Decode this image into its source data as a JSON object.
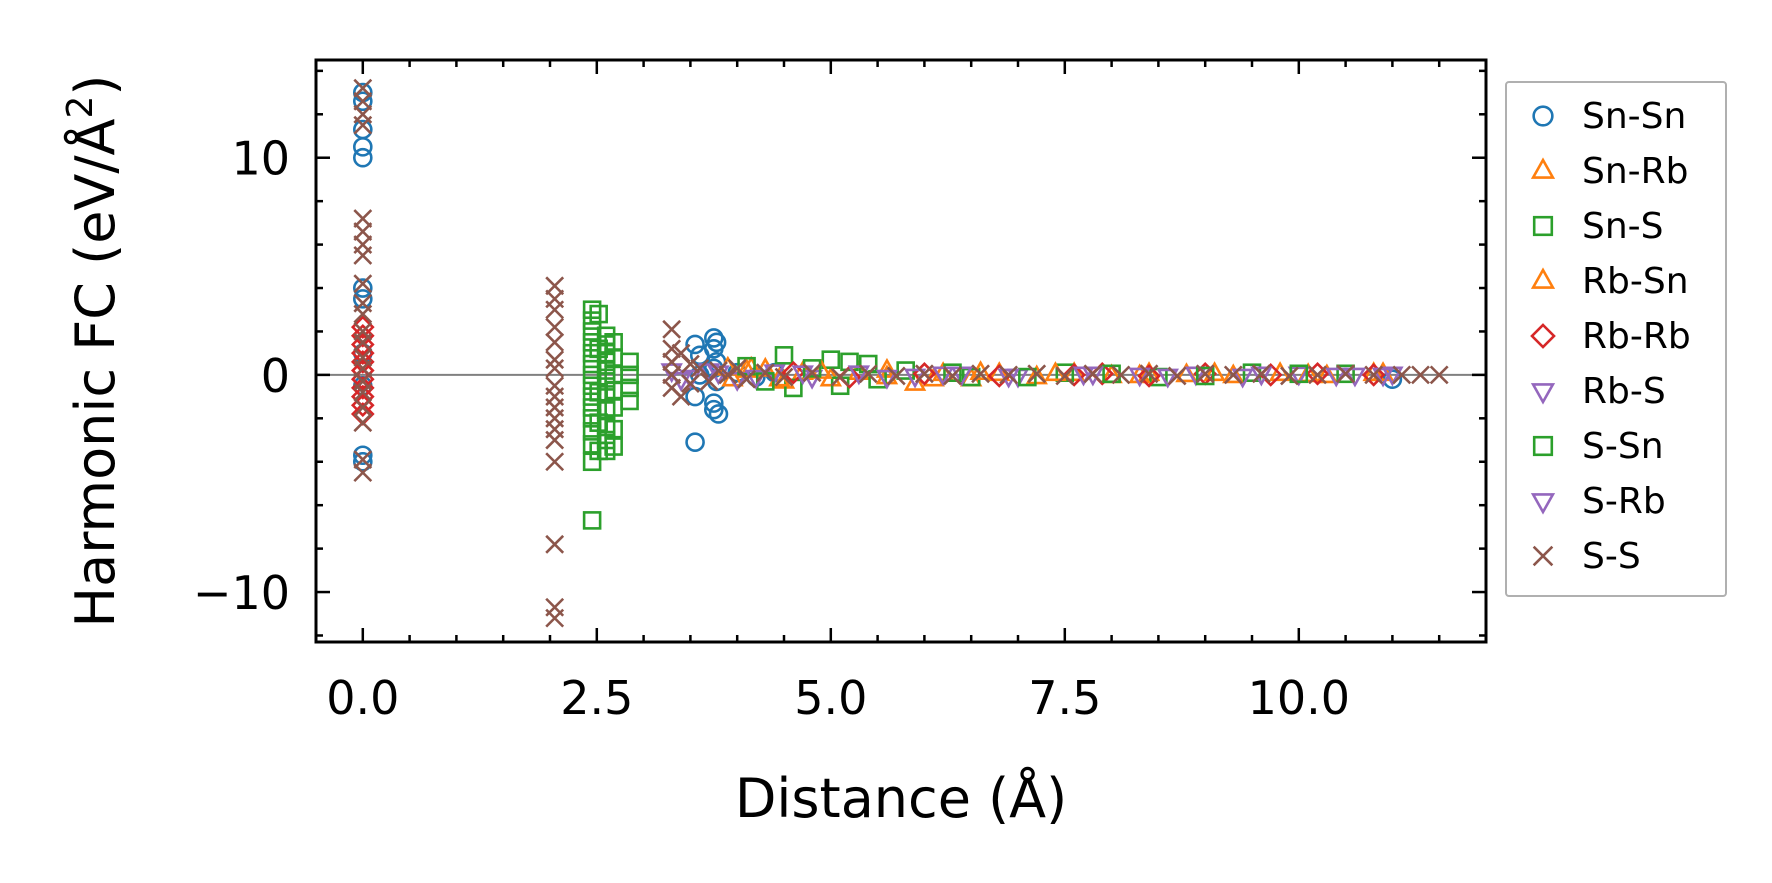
{
  "chart_data": {
    "type": "scatter",
    "title": "",
    "xlabel": "Distance (Å)",
    "ylabel": "Harmonic FC (eV/Å",
    "ylabel_sup": "2",
    "ylabel_end": ")",
    "xlim": [
      -0.5,
      12.0
    ],
    "ylim": [
      -12.3,
      14.5
    ],
    "xticks": [
      0.0,
      2.5,
      5.0,
      7.5,
      10.0
    ],
    "xtick_labels": [
      "0.0",
      "2.5",
      "5.0",
      "7.5",
      "10.0"
    ],
    "yticks": [
      -10,
      0,
      10
    ],
    "ytick_labels": [
      "−10",
      "0",
      "10"
    ],
    "zero_line": true,
    "grid": false,
    "legend_position": "outside right",
    "series": [
      {
        "name": "Sn-Sn",
        "marker": "circle",
        "color": "#1f77b4",
        "points": [
          [
            0.0,
            13.0
          ],
          [
            0.0,
            12.6
          ],
          [
            0.0,
            11.3
          ],
          [
            0.0,
            10.5
          ],
          [
            0.0,
            10.0
          ],
          [
            0.0,
            4.0
          ],
          [
            0.0,
            3.5
          ],
          [
            0.0,
            1.0
          ],
          [
            0.0,
            -0.5
          ],
          [
            0.0,
            -3.7
          ],
          [
            0.0,
            -4.0
          ],
          [
            3.55,
            1.4
          ],
          [
            3.6,
            0.9
          ],
          [
            3.6,
            0.0
          ],
          [
            3.55,
            -1.0
          ],
          [
            3.55,
            -3.1
          ],
          [
            3.75,
            1.7
          ],
          [
            3.78,
            1.5
          ],
          [
            3.75,
            1.2
          ],
          [
            3.78,
            0.6
          ],
          [
            3.75,
            0.3
          ],
          [
            3.78,
            -0.3
          ],
          [
            3.75,
            -1.3
          ],
          [
            3.8,
            -1.8
          ],
          [
            3.75,
            -1.6
          ],
          [
            4.0,
            0.1
          ],
          [
            4.2,
            -0.1
          ],
          [
            4.4,
            0.1
          ],
          [
            11.0,
            -0.2
          ]
        ]
      },
      {
        "name": "Sn-Rb",
        "marker": "triangle-up",
        "color": "#ff7f0e",
        "points": [
          [
            3.9,
            0.3
          ],
          [
            4.1,
            0.2
          ],
          [
            4.3,
            0.25
          ],
          [
            4.5,
            -0.3
          ],
          [
            4.7,
            0.1
          ],
          [
            5.0,
            -0.2
          ],
          [
            5.3,
            0.1
          ],
          [
            5.6,
            -0.1
          ],
          [
            5.9,
            -0.4
          ],
          [
            6.2,
            0.05
          ],
          [
            6.5,
            -0.2
          ],
          [
            6.8,
            0.05
          ],
          [
            7.2,
            -0.1
          ],
          [
            7.6,
            0.05
          ],
          [
            8.0,
            -0.05
          ],
          [
            8.4,
            0.05
          ],
          [
            8.8,
            0.0
          ],
          [
            9.3,
            -0.05
          ],
          [
            9.8,
            0.05
          ],
          [
            10.3,
            -0.05
          ],
          [
            10.8,
            0.05
          ]
        ]
      },
      {
        "name": "Sn-S",
        "marker": "square",
        "color": "#2ca02c",
        "points": [
          [
            2.45,
            3.0
          ],
          [
            2.45,
            2.5
          ],
          [
            2.45,
            2.0
          ],
          [
            2.45,
            1.5
          ],
          [
            2.45,
            1.0
          ],
          [
            2.45,
            0.5
          ],
          [
            2.45,
            0.0
          ],
          [
            2.45,
            -0.5
          ],
          [
            2.45,
            -1.0
          ],
          [
            2.45,
            -1.5
          ],
          [
            2.45,
            -2.0
          ],
          [
            2.45,
            -2.6
          ],
          [
            2.45,
            -3.2
          ],
          [
            2.45,
            -4.0
          ],
          [
            2.45,
            -6.7
          ],
          [
            2.52,
            2.8
          ],
          [
            2.52,
            1.2
          ],
          [
            2.52,
            -0.8
          ],
          [
            2.52,
            -2.2
          ],
          [
            2.52,
            -3.5
          ],
          [
            2.6,
            1.8
          ],
          [
            2.6,
            1.4
          ],
          [
            2.6,
            1.0
          ],
          [
            2.6,
            0.6
          ],
          [
            2.6,
            0.2
          ],
          [
            2.6,
            -0.3
          ],
          [
            2.6,
            -0.9
          ],
          [
            2.6,
            -1.6
          ],
          [
            2.6,
            -2.4
          ],
          [
            2.6,
            -3.0
          ],
          [
            2.6,
            -3.5
          ],
          [
            2.68,
            1.5
          ],
          [
            2.68,
            0.8
          ],
          [
            2.68,
            0.0
          ],
          [
            2.68,
            -0.7
          ],
          [
            2.68,
            -1.5
          ],
          [
            2.68,
            -2.5
          ],
          [
            2.68,
            -3.3
          ],
          [
            2.85,
            0.6
          ],
          [
            2.85,
            0.0
          ],
          [
            2.85,
            -0.6
          ],
          [
            2.85,
            -1.2
          ],
          [
            4.5,
            0.9
          ],
          [
            4.6,
            -0.6
          ],
          [
            5.0,
            0.7
          ],
          [
            5.2,
            0.6
          ],
          [
            5.4,
            0.5
          ],
          [
            5.1,
            -0.5
          ],
          [
            5.8,
            0.2
          ],
          [
            6.5,
            -0.1
          ],
          [
            7.5,
            0.1
          ],
          [
            8.5,
            -0.1
          ],
          [
            9.5,
            0.1
          ],
          [
            10.5,
            0.05
          ]
        ]
      },
      {
        "name": "Rb-Sn",
        "marker": "triangle-up",
        "color": "#ff7f0e",
        "points": [
          [
            3.95,
            -0.2
          ],
          [
            4.15,
            0.3
          ],
          [
            4.45,
            -0.2
          ],
          [
            4.9,
            0.15
          ],
          [
            5.6,
            0.2
          ],
          [
            6.1,
            -0.2
          ],
          [
            6.6,
            0.1
          ],
          [
            7.4,
            0.05
          ],
          [
            8.3,
            -0.05
          ],
          [
            9.1,
            0.05
          ],
          [
            10.1,
            0.0
          ],
          [
            10.9,
            0.05
          ]
        ]
      },
      {
        "name": "Rb-Rb",
        "marker": "diamond",
        "color": "#d62728",
        "points": [
          [
            0.0,
            2.2
          ],
          [
            0.0,
            1.8
          ],
          [
            0.0,
            1.4
          ],
          [
            0.0,
            1.0
          ],
          [
            0.0,
            0.6
          ],
          [
            0.0,
            0.2
          ],
          [
            0.0,
            -0.2
          ],
          [
            0.0,
            -0.6
          ],
          [
            0.0,
            -1.0
          ],
          [
            0.0,
            -1.4
          ],
          [
            0.0,
            -1.8
          ],
          [
            4.6,
            0.1
          ],
          [
            5.2,
            -0.1
          ],
          [
            6.0,
            0.05
          ],
          [
            6.8,
            -0.05
          ],
          [
            7.6,
            0.0
          ],
          [
            7.9,
            0.05
          ],
          [
            8.4,
            -0.05
          ],
          [
            9.0,
            0.05
          ],
          [
            9.7,
            0.0
          ],
          [
            10.2,
            0.05
          ],
          [
            10.8,
            0.0
          ]
        ]
      },
      {
        "name": "Rb-S",
        "marker": "triangle-down",
        "color": "#9467bd",
        "points": [
          [
            3.3,
            0.2
          ],
          [
            3.5,
            -0.1
          ],
          [
            3.7,
            0.2
          ],
          [
            4.0,
            -0.2
          ],
          [
            4.4,
            0.15
          ],
          [
            4.8,
            -0.1
          ],
          [
            5.3,
            0.1
          ],
          [
            5.9,
            -0.05
          ],
          [
            6.4,
            0.05
          ],
          [
            7.0,
            -0.05
          ],
          [
            7.7,
            0.05
          ],
          [
            8.3,
            0.0
          ],
          [
            8.9,
            0.05
          ],
          [
            9.4,
            -0.05
          ],
          [
            10.0,
            0.05
          ],
          [
            10.6,
            0.0
          ],
          [
            11.0,
            0.05
          ]
        ]
      },
      {
        "name": "S-Sn",
        "marker": "square",
        "color": "#2ca02c",
        "points": [
          [
            4.1,
            0.4
          ],
          [
            4.3,
            -0.3
          ],
          [
            4.8,
            0.3
          ],
          [
            5.5,
            -0.2
          ],
          [
            6.3,
            0.1
          ],
          [
            7.1,
            -0.1
          ],
          [
            8.0,
            0.05
          ],
          [
            9.0,
            -0.05
          ],
          [
            10.0,
            0.05
          ]
        ]
      },
      {
        "name": "S-Rb",
        "marker": "triangle-down",
        "color": "#9467bd",
        "points": [
          [
            3.4,
            -0.2
          ],
          [
            3.8,
            0.1
          ],
          [
            4.2,
            -0.1
          ],
          [
            4.7,
            0.1
          ],
          [
            5.6,
            -0.1
          ],
          [
            6.2,
            0.05
          ],
          [
            6.9,
            -0.05
          ],
          [
            7.8,
            0.05
          ],
          [
            8.6,
            -0.05
          ],
          [
            9.6,
            0.05
          ],
          [
            10.4,
            0.0
          ],
          [
            10.9,
            0.0
          ]
        ]
      },
      {
        "name": "S-S",
        "marker": "x",
        "color": "#8c564b",
        "points": [
          [
            0.0,
            13.2
          ],
          [
            0.0,
            12.6
          ],
          [
            0.0,
            12.0
          ],
          [
            0.0,
            11.5
          ],
          [
            0.0,
            7.2
          ],
          [
            0.0,
            6.6
          ],
          [
            0.0,
            6.0
          ],
          [
            0.0,
            5.5
          ],
          [
            0.0,
            4.2
          ],
          [
            0.0,
            3.3
          ],
          [
            0.0,
            2.8
          ],
          [
            0.0,
            2.0
          ],
          [
            0.0,
            1.5
          ],
          [
            0.0,
            0.8
          ],
          [
            0.0,
            0.3
          ],
          [
            0.0,
            -0.3
          ],
          [
            0.0,
            -0.8
          ],
          [
            0.0,
            -1.5
          ],
          [
            0.0,
            -2.2
          ],
          [
            0.0,
            -3.9
          ],
          [
            0.0,
            -4.5
          ],
          [
            2.05,
            4.1
          ],
          [
            2.05,
            3.5
          ],
          [
            2.05,
            3.0
          ],
          [
            2.05,
            2.2
          ],
          [
            2.05,
            1.5
          ],
          [
            2.05,
            0.7
          ],
          [
            2.05,
            0.3
          ],
          [
            2.05,
            -0.5
          ],
          [
            2.05,
            -1.0
          ],
          [
            2.05,
            -1.5
          ],
          [
            2.05,
            -2.0
          ],
          [
            2.05,
            -2.5
          ],
          [
            2.05,
            -3.0
          ],
          [
            2.05,
            -4.0
          ],
          [
            2.05,
            -7.8
          ],
          [
            2.05,
            -10.7
          ],
          [
            2.05,
            -11.2
          ],
          [
            3.3,
            2.1
          ],
          [
            3.3,
            1.2
          ],
          [
            3.3,
            0.6
          ],
          [
            3.3,
            0.0
          ],
          [
            3.3,
            -0.6
          ],
          [
            3.4,
            1.0
          ],
          [
            3.4,
            -1.0
          ],
          [
            3.5,
            0.5
          ],
          [
            3.5,
            -0.4
          ],
          [
            3.6,
            0.3
          ],
          [
            3.7,
            -0.3
          ],
          [
            3.8,
            0.2
          ],
          [
            3.9,
            0.0
          ],
          [
            4.0,
            0.3
          ],
          [
            4.1,
            -0.2
          ],
          [
            4.3,
            0.1
          ],
          [
            4.5,
            -0.1
          ],
          [
            4.8,
            0.1
          ],
          [
            5.1,
            -0.1
          ],
          [
            5.4,
            0.05
          ],
          [
            5.7,
            -0.05
          ],
          [
            6.0,
            0.05
          ],
          [
            6.3,
            -0.05
          ],
          [
            6.6,
            0.05
          ],
          [
            6.9,
            0.0
          ],
          [
            7.2,
            0.05
          ],
          [
            7.5,
            -0.05
          ],
          [
            7.8,
            0.05
          ],
          [
            8.1,
            0.0
          ],
          [
            8.4,
            0.05
          ],
          [
            8.7,
            -0.05
          ],
          [
            9.0,
            0.05
          ],
          [
            9.3,
            0.0
          ],
          [
            9.6,
            0.05
          ],
          [
            9.9,
            -0.05
          ],
          [
            10.2,
            0.0
          ],
          [
            10.5,
            0.05
          ],
          [
            10.8,
            0.0
          ],
          [
            11.1,
            0.0
          ],
          [
            11.3,
            0.0
          ],
          [
            11.5,
            0.0
          ]
        ]
      }
    ]
  }
}
